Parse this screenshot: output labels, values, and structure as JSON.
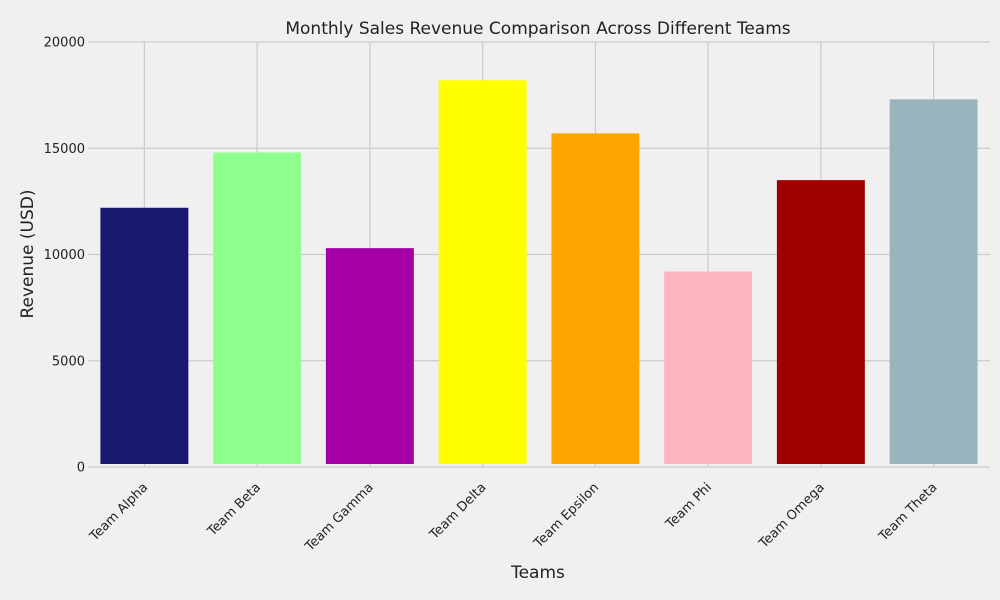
{
  "chart_data": {
    "type": "bar",
    "title": "Monthly Sales Revenue Comparison Across Different Teams",
    "xlabel": "Teams",
    "ylabel": "Revenue (USD)",
    "categories": [
      "Team Alpha",
      "Team Beta",
      "Team Gamma",
      "Team Delta",
      "Team Epsilon",
      "Team Phi",
      "Team Omega",
      "Team Theta"
    ],
    "values": [
      12200,
      14800,
      10300,
      18200,
      15700,
      9200,
      13500,
      17300
    ],
    "colors": [
      "#191970",
      "#8eff8c",
      "#a500a5",
      "#ffff00",
      "#ffa500",
      "#ffb5c0",
      "#a10000",
      "#98b3bb"
    ],
    "ylim": [
      0,
      20000
    ],
    "yticks": [
      0,
      5000,
      10000,
      15000,
      20000
    ],
    "grid": true,
    "background": "#f0f0f0",
    "grid_color": "#cbcbcb"
  }
}
